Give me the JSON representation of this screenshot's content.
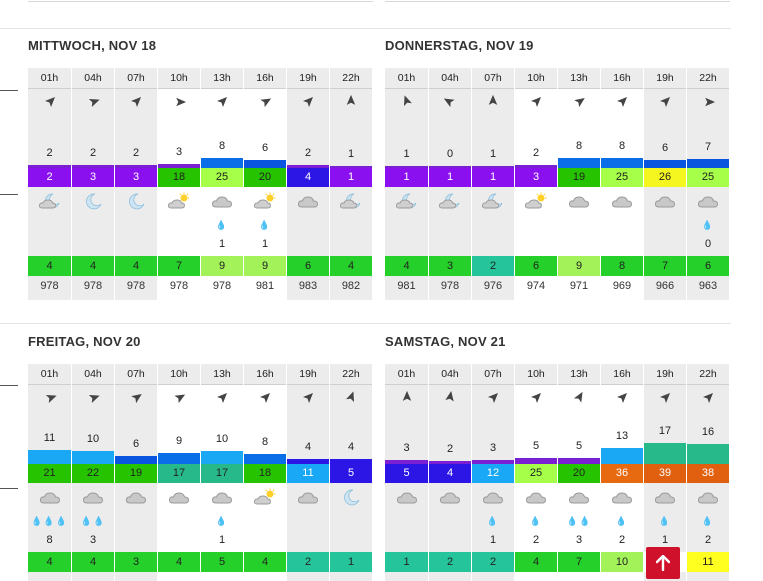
{
  "days": [
    {
      "title": "MITTWOCH, NOV 18",
      "hours": [
        "01h",
        "04h",
        "07h",
        "10h",
        "13h",
        "16h",
        "19h",
        "22h"
      ],
      "night": [
        true,
        true,
        true,
        false,
        false,
        false,
        true,
        true
      ],
      "wind_dir_deg": [
        225,
        250,
        225,
        270,
        225,
        240,
        225,
        180
      ],
      "wind": [
        "2",
        "2",
        "2",
        "3",
        "8",
        "6",
        "2",
        "1"
      ],
      "wind_bar_color": [
        "#7a1fd1",
        "#7a1fd1",
        "#7a1fd1",
        "#7a1fd1",
        "#0a6ee8",
        "#0a55e0",
        "#7a1fd1",
        "#7a1fd1"
      ],
      "wind_level": [
        2,
        2,
        2,
        3,
        8,
        6,
        2,
        1
      ],
      "gust": [
        "2",
        "3",
        "3",
        "18",
        "25",
        "20",
        "4",
        "1"
      ],
      "gust_color": [
        "#8b10f0",
        "#8b10f0",
        "#8b10f0",
        "#26c400",
        "#a6ff48",
        "#26c400",
        "#2b16e6",
        "#8b10f0"
      ],
      "gust_dark": [
        false,
        false,
        false,
        true,
        true,
        true,
        false,
        false
      ],
      "icon": [
        "moon-cloud",
        "moon",
        "moon",
        "sun-cloud",
        "cloud",
        "sun-cloud",
        "cloud",
        "moon-cloud"
      ],
      "rain": [
        "",
        "",
        "",
        "",
        "💧",
        "💧",
        "",
        ""
      ],
      "precip": [
        "",
        "",
        "",
        "",
        "1",
        "1",
        "",
        ""
      ],
      "temp": [
        "4",
        "4",
        "4",
        "7",
        "9",
        "9",
        "6",
        "4"
      ],
      "temp_color": [
        "#26d02a",
        "#26d02a",
        "#26d02a",
        "#26d02a",
        "#a3f25a",
        "#a3f25a",
        "#26d02a",
        "#26d02a"
      ],
      "pressure": [
        "978",
        "978",
        "978",
        "978",
        "978",
        "981",
        "983",
        "982"
      ]
    },
    {
      "title": "DONNERSTAG, NOV 19",
      "hours": [
        "01h",
        "04h",
        "07h",
        "10h",
        "13h",
        "16h",
        "19h",
        "22h"
      ],
      "night": [
        true,
        true,
        true,
        false,
        false,
        false,
        true,
        true
      ],
      "wind_dir_deg": [
        160,
        120,
        180,
        225,
        235,
        225,
        225,
        270
      ],
      "wind": [
        "1",
        "0",
        "1",
        "2",
        "8",
        "8",
        "6",
        "7"
      ],
      "wind_bar_color": [
        "#7a1fd1",
        "#7a1fd1",
        "#7a1fd1",
        "#7a1fd1",
        "#0a6ee8",
        "#0a6ee8",
        "#0a55e0",
        "#0a55e0"
      ],
      "wind_level": [
        1,
        0,
        1,
        2,
        8,
        8,
        6,
        7
      ],
      "gust": [
        "1",
        "1",
        "1",
        "3",
        "19",
        "25",
        "26",
        "25"
      ],
      "gust_color": [
        "#8b10f0",
        "#8b10f0",
        "#8b10f0",
        "#8b10f0",
        "#26c400",
        "#a6ff48",
        "#f5f520",
        "#a6ff48"
      ],
      "gust_dark": [
        false,
        false,
        false,
        false,
        true,
        true,
        true,
        true
      ],
      "icon": [
        "moon-cloud",
        "moon-cloud",
        "moon-cloud",
        "sun-cloud",
        "cloud",
        "cloud",
        "cloud",
        "cloud"
      ],
      "rain": [
        "",
        "",
        "",
        "",
        "",
        "",
        "",
        "💧"
      ],
      "precip": [
        "",
        "",
        "",
        "",
        "",
        "",
        "",
        "0"
      ],
      "temp": [
        "4",
        "3",
        "2",
        "6",
        "9",
        "8",
        "7",
        "6"
      ],
      "temp_color": [
        "#26d02a",
        "#26d02a",
        "#26c49a",
        "#26d02a",
        "#a3f25a",
        "#26d02a",
        "#26d02a",
        "#26d02a"
      ],
      "pressure": [
        "981",
        "978",
        "976",
        "974",
        "971",
        "969",
        "966",
        "963"
      ]
    },
    {
      "title": "FREITAG, NOV 20",
      "hours": [
        "01h",
        "04h",
        "07h",
        "10h",
        "13h",
        "16h",
        "19h",
        "22h"
      ],
      "night": [
        true,
        true,
        true,
        false,
        false,
        false,
        true,
        true
      ],
      "wind_dir_deg": [
        250,
        250,
        235,
        240,
        225,
        225,
        225,
        200
      ],
      "wind": [
        "11",
        "10",
        "6",
        "9",
        "10",
        "8",
        "4",
        "4"
      ],
      "wind_bar_color": [
        "#1aa8f5",
        "#1aa8f5",
        "#0a55e0",
        "#0a6ee8",
        "#1aa8f5",
        "#0a6ee8",
        "#2b16e6",
        "#2b16e6"
      ],
      "wind_level": [
        11,
        10,
        6,
        9,
        10,
        8,
        4,
        4
      ],
      "gust": [
        "21",
        "22",
        "19",
        "17",
        "17",
        "18",
        "11",
        "5"
      ],
      "gust_color": [
        "#26c400",
        "#26c400",
        "#26c400",
        "#27b98a",
        "#27b98a",
        "#26c400",
        "#19a8f5",
        "#2b16e6"
      ],
      "gust_dark": [
        true,
        true,
        true,
        true,
        true,
        true,
        false,
        false
      ],
      "icon": [
        "cloud",
        "cloud",
        "cloud",
        "cloud",
        "cloud",
        "sun-cloud",
        "cloud",
        "moon"
      ],
      "rain": [
        "💧💧💧",
        "💧💧",
        "",
        "",
        "💧",
        "",
        "",
        ""
      ],
      "precip": [
        "8",
        "3",
        "",
        "",
        "1",
        "",
        "",
        ""
      ],
      "temp": [
        "4",
        "4",
        "3",
        "4",
        "5",
        "4",
        "2",
        "1"
      ],
      "temp_color": [
        "#26d02a",
        "#26d02a",
        "#26d02a",
        "#26d02a",
        "#26d02a",
        "#26d02a",
        "#26c49a",
        "#26c49a"
      ],
      "pressure": []
    },
    {
      "title": "SAMSTAG, NOV 21",
      "hours": [
        "01h",
        "04h",
        "07h",
        "10h",
        "13h",
        "16h",
        "19h",
        "22h"
      ],
      "night": [
        true,
        true,
        true,
        false,
        false,
        false,
        true,
        true
      ],
      "wind_dir_deg": [
        180,
        190,
        225,
        225,
        210,
        225,
        225,
        225
      ],
      "wind": [
        "3",
        "2",
        "3",
        "5",
        "5",
        "13",
        "17",
        "16"
      ],
      "wind_bar_color": [
        "#7a1fd1",
        "#7a1fd1",
        "#7a1fd1",
        "#7a1fd1",
        "#7a1fd1",
        "#1aa8f5",
        "#27b98a",
        "#27b98a"
      ],
      "wind_level": [
        3,
        2,
        3,
        5,
        5,
        13,
        17,
        16
      ],
      "gust": [
        "5",
        "4",
        "12",
        "25",
        "20",
        "36",
        "39",
        "38"
      ],
      "gust_color": [
        "#2b16e6",
        "#2b16e6",
        "#19a8f5",
        "#a6ff48",
        "#26c400",
        "#e86a10",
        "#e06010",
        "#e06010"
      ],
      "gust_dark": [
        false,
        false,
        false,
        true,
        true,
        false,
        false,
        false
      ],
      "icon": [
        "cloud",
        "cloud",
        "cloud",
        "cloud",
        "cloud",
        "cloud",
        "cloud",
        "cloud"
      ],
      "rain": [
        "",
        "",
        "💧",
        "💧",
        "💧💧",
        "💧",
        "💧",
        "💧"
      ],
      "precip": [
        "",
        "",
        "1",
        "2",
        "3",
        "2",
        "1",
        "2"
      ],
      "temp": [
        "1",
        "2",
        "2",
        "4",
        "7",
        "10",
        "",
        "11"
      ],
      "temp_color": [
        "#26c49a",
        "#26c49a",
        "#26c49a",
        "#26d02a",
        "#26d02a",
        "#a3f25a",
        "#ffffff",
        "#ffff20"
      ],
      "pressure": []
    }
  ],
  "scroll_top_button": {
    "icon": "arrow-up-icon"
  }
}
